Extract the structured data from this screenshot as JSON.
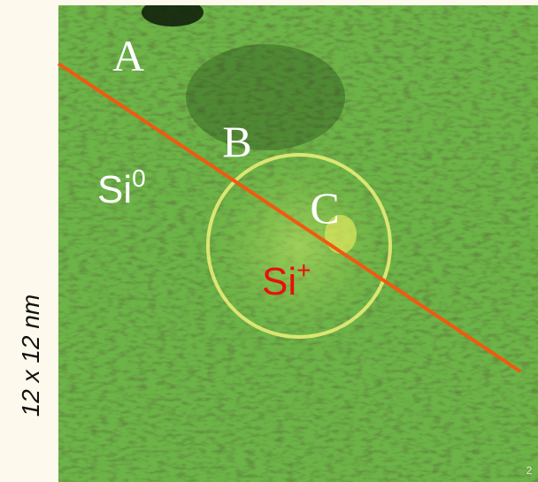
{
  "labels": {
    "a": "A",
    "b": "B",
    "c": "C"
  },
  "si_neutral": {
    "base": "Si",
    "sup": "0"
  },
  "si_ion": {
    "base": "Si",
    "sup": "+"
  },
  "scale_label": "12 x 12 nm",
  "corner_mark": "2"
}
